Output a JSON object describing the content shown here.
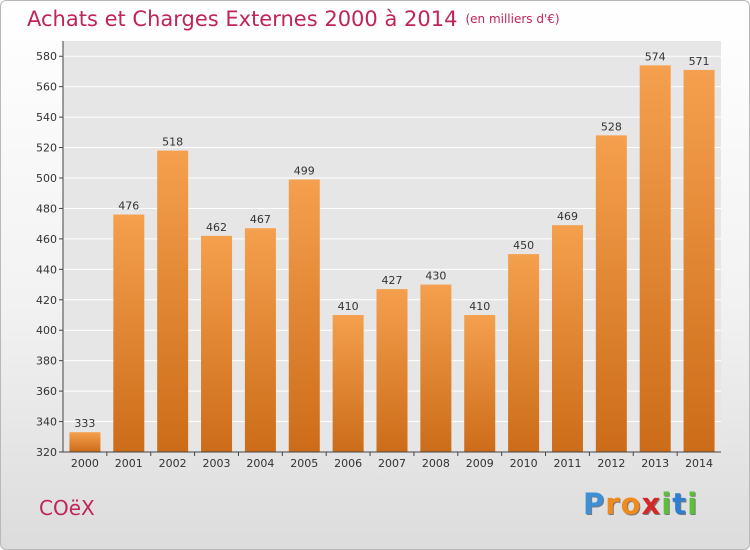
{
  "title": "Achats et Charges Externes 2000 à 2014",
  "subtitle": "(en milliers d'€)",
  "commune": "COëX",
  "logo": {
    "letters": [
      "P",
      "r",
      "o",
      "x",
      "i",
      "t",
      "i"
    ],
    "colors": [
      "#3d8fd6",
      "#f08a1c",
      "#f08a1c",
      "#d62828",
      "#5bbf3a",
      "#2f7fd0",
      "#5bbf3a"
    ]
  },
  "colors": {
    "title": "#c0245a",
    "bar_top": "#f5a04e",
    "bar_bottom": "#cc6c18",
    "grid": "#ffffff",
    "axis": "#444444"
  },
  "chart_data": {
    "type": "bar",
    "title": "Achats et Charges Externes 2000 à 2014",
    "xlabel": "",
    "ylabel": "",
    "ylim": [
      320,
      590
    ],
    "yticks": [
      320,
      340,
      360,
      380,
      400,
      420,
      440,
      460,
      480,
      500,
      520,
      540,
      560,
      580
    ],
    "grid": true,
    "categories": [
      "2000",
      "2001",
      "2002",
      "2003",
      "2004",
      "2005",
      "2006",
      "2007",
      "2008",
      "2009",
      "2010",
      "2011",
      "2012",
      "2013",
      "2014"
    ],
    "values": [
      333,
      476,
      518,
      462,
      467,
      499,
      410,
      427,
      430,
      410,
      450,
      469,
      528,
      574,
      571
    ]
  }
}
